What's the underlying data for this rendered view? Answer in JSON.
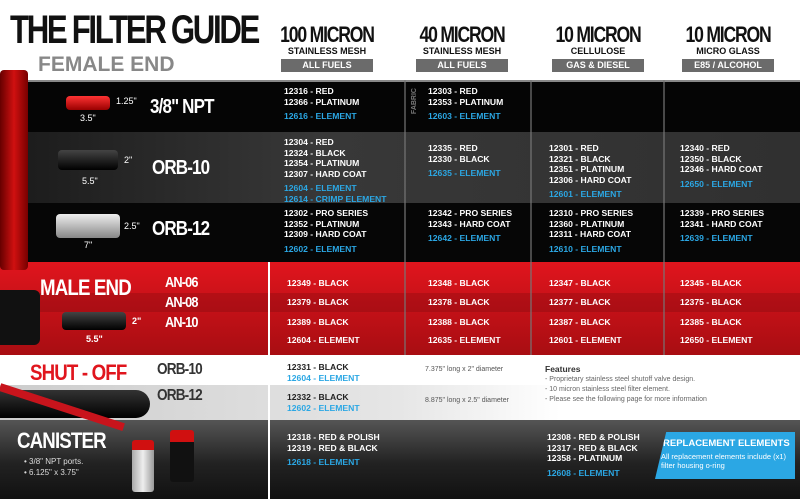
{
  "title": "THE FILTER GUIDE",
  "section_female": "FEMALE END",
  "columns": [
    {
      "micron": "100 MICRON",
      "material": "STAINLESS MESH",
      "fuel": "ALL FUELS"
    },
    {
      "micron": "40 MICRON",
      "material": "STAINLESS MESH",
      "fuel": "ALL FUELS"
    },
    {
      "micron": "10 MICRON",
      "material": "CELLULOSE",
      "fuel": "GAS & DIESEL"
    },
    {
      "micron": "10 MICRON",
      "material": "MICRO GLASS",
      "fuel": "E85 / ALCOHOL"
    }
  ],
  "colors": {
    "accent_blue": "#2ba7e4",
    "male_red": "#c8141c",
    "badge_gray": "#6b6b6b"
  },
  "female_rows": [
    {
      "label": "3/8\" NPT",
      "dims": [
        "1.25\"",
        "3.5\""
      ],
      "fabric_tag": "FABRIC",
      "cells": [
        [
          "12316 - RED",
          "12366 - PLATINUM",
          "*12616 - ELEMENT"
        ],
        [
          "12303 - RED",
          "12353 - PLATINUM",
          "*12603 - ELEMENT"
        ],
        [],
        []
      ]
    },
    {
      "label": "ORB-10",
      "dims": [
        "2\"",
        "5.5\""
      ],
      "cells": [
        [
          "12304 - RED",
          "12324 - BLACK",
          "12354 - PLATINUM",
          "12307 - HARD COAT",
          "*12604 - ELEMENT",
          "*12614 - CRIMP ELEMENT"
        ],
        [
          "12335 - RED",
          "12330 - BLACK",
          "*12635 - ELEMENT"
        ],
        [
          "12301 - RED",
          "12321 - BLACK",
          "12351 - PLATINUM",
          "12306 - HARD COAT",
          "*12601 - ELEMENT"
        ],
        [
          "12340 - RED",
          "12350 - BLACK",
          "12346 - HARD COAT",
          "*12650 - ELEMENT"
        ]
      ]
    },
    {
      "label": "ORB-12",
      "dims": [
        "2.5\"",
        "7\""
      ],
      "cells": [
        [
          "12302 - PRO SERIES",
          "12352 - PLATINUM",
          "12309 - HARD COAT",
          "*12602 - ELEMENT"
        ],
        [
          "12342 - PRO SERIES",
          "12343 - HARD COAT",
          "*12642 - ELEMENT"
        ],
        [
          "12310 - PRO SERIES",
          "12360 - PLATINUM",
          "12311 - HARD COAT",
          "*12610 - ELEMENT"
        ],
        [
          "12339 - PRO SERIES",
          "12341 - HARD COAT",
          "*12639 - ELEMENT"
        ]
      ]
    }
  ],
  "male": {
    "title": "MALE END",
    "dims": [
      "2\"",
      "5.5\""
    ],
    "rows": [
      {
        "label": "AN-06",
        "cells": [
          "12349 - BLACK",
          "12348 - BLACK",
          "12347 - BLACK",
          "12345 - BLACK"
        ]
      },
      {
        "label": "AN-08",
        "cells": [
          "12379 - BLACK",
          "12378 - BLACK",
          "12377 - BLACK",
          "12375 - BLACK"
        ]
      },
      {
        "label": "AN-10",
        "cells": [
          "12389 - BLACK",
          "12388 - BLACK",
          "12387 - BLACK",
          "12385 - BLACK"
        ]
      },
      {
        "label": "",
        "cells": [
          "12604 - ELEMENT",
          "12635 - ELEMENT",
          "12601 - ELEMENT",
          "12650 - ELEMENT"
        ]
      }
    ]
  },
  "shutoff": {
    "title": "SHUT - OFF",
    "rows": [
      {
        "label": "ORB-10",
        "part": "12331 - BLACK",
        "element": "12604 - ELEMENT",
        "dims": "7.375\" long x 2\" diameter"
      },
      {
        "label": "ORB-12",
        "part": "12332 - BLACK",
        "element": "12602 - ELEMENT",
        "dims": "8.875\" long x 2.5\" diameter"
      }
    ],
    "features_title": "Features",
    "features": [
      "- Proprietary stainless steel shutoff valve design.",
      "- 10 micron stainless steel filter element.",
      "- Please see the following page for more information"
    ]
  },
  "canister": {
    "title": "CANISTER",
    "bullets": [
      "• 3/8\" NPT ports.",
      "• 6.125\" x 3.75\""
    ],
    "col1": [
      "12318 - RED & POLISH",
      "12319 - RED & BLACK",
      "*12618 - ELEMENT"
    ],
    "col3": [
      "12308 - RED & POLISH",
      "12317 - RED & BLACK",
      "12358 - PLATINUM",
      "*12608 - ELEMENT"
    ]
  },
  "replacement": {
    "title": "REPLACEMENT ELEMENTS",
    "text": "All replacement elements include (x1) filter housing o-ring"
  }
}
